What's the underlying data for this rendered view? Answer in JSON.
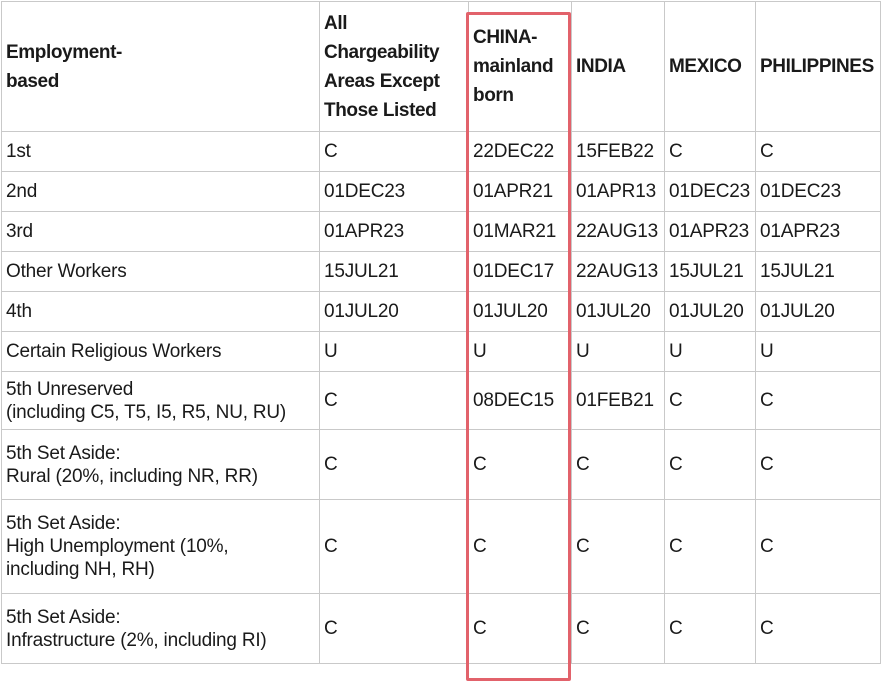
{
  "headers": {
    "category": "Employment-\nbased",
    "all_areas": "All Chargeability Areas Except Those Listed",
    "china": "CHINA-mainland born",
    "india": "INDIA",
    "mexico": "MEXICO",
    "philippines": "PHILIPPINES"
  },
  "rows": [
    {
      "label": "1st",
      "all": "C",
      "china": "22DEC22",
      "india": "15FEB22",
      "mexico": "C",
      "philippines": "C"
    },
    {
      "label": "2nd",
      "all": "01DEC23",
      "china": "01APR21",
      "india": "01APR13",
      "mexico": "01DEC23",
      "philippines": "01DEC23"
    },
    {
      "label": "3rd",
      "all": "01APR23",
      "china": "01MAR21",
      "india": "22AUG13",
      "mexico": "01APR23",
      "philippines": "01APR23"
    },
    {
      "label": "Other Workers",
      "all": "15JUL21",
      "china": "01DEC17",
      "india": "22AUG13",
      "mexico": "15JUL21",
      "philippines": "15JUL21"
    },
    {
      "label": "4th",
      "all": "01JUL20",
      "china": "01JUL20",
      "india": "01JUL20",
      "mexico": "01JUL20",
      "philippines": "01JUL20"
    },
    {
      "label": "Certain Religious Workers",
      "all": "U",
      "china": "U",
      "india": "U",
      "mexico": "U",
      "philippines": "U"
    },
    {
      "label": "5th Unreserved\n(including C5, T5, I5, R5, NU, RU)",
      "all": "C",
      "china": "08DEC15",
      "india": "01FEB21",
      "mexico": "C",
      "philippines": "C"
    },
    {
      "label": "5th Set Aside:\nRural (20%, including NR, RR)",
      "all": "C",
      "china": "C",
      "india": "C",
      "mexico": "C",
      "philippines": "C"
    },
    {
      "label": "5th Set Aside:\nHigh Unemployment (10%,\nincluding NH, RH)",
      "all": "C",
      "china": "C",
      "india": "C",
      "mexico": "C",
      "philippines": "C"
    },
    {
      "label": "5th Set Aside:\nInfrastructure (2%, including RI)",
      "all": "C",
      "china": "C",
      "india": "C",
      "mexico": "C",
      "philippines": "C"
    }
  ],
  "colors": {
    "highlight_border": "#e2626b",
    "grid": "#c9c9c9"
  }
}
